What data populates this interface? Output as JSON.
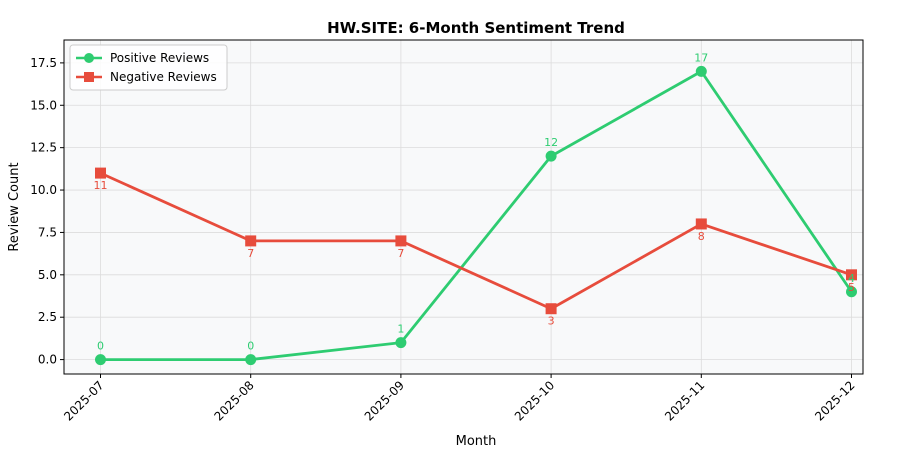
{
  "chart_data": {
    "type": "line",
    "title": "HW.SITE: 6-Month Sentiment Trend",
    "xlabel": "Month",
    "ylabel": "Review Count",
    "categories": [
      "2025-07",
      "2025-08",
      "2025-09",
      "2025-10",
      "2025-11",
      "2025-12"
    ],
    "ylim": [
      -0.85,
      18.85
    ],
    "yticks": [
      "0.0",
      "2.5",
      "5.0",
      "7.5",
      "10.0",
      "12.5",
      "15.0",
      "17.5"
    ],
    "grid": true,
    "legend_position": "top-left",
    "series": [
      {
        "name": "Positive Reviews",
        "values": [
          0,
          0,
          1,
          12,
          17,
          4
        ],
        "labels": [
          "0",
          "0",
          "1",
          "12",
          "17",
          "4"
        ],
        "color": "#2ecc71",
        "marker": "circle"
      },
      {
        "name": "Negative Reviews",
        "values": [
          11,
          7,
          7,
          3,
          8,
          5
        ],
        "labels": [
          "11",
          "7",
          "7",
          "3",
          "8",
          "5"
        ],
        "color": "#e74c3c",
        "marker": "square"
      }
    ]
  }
}
